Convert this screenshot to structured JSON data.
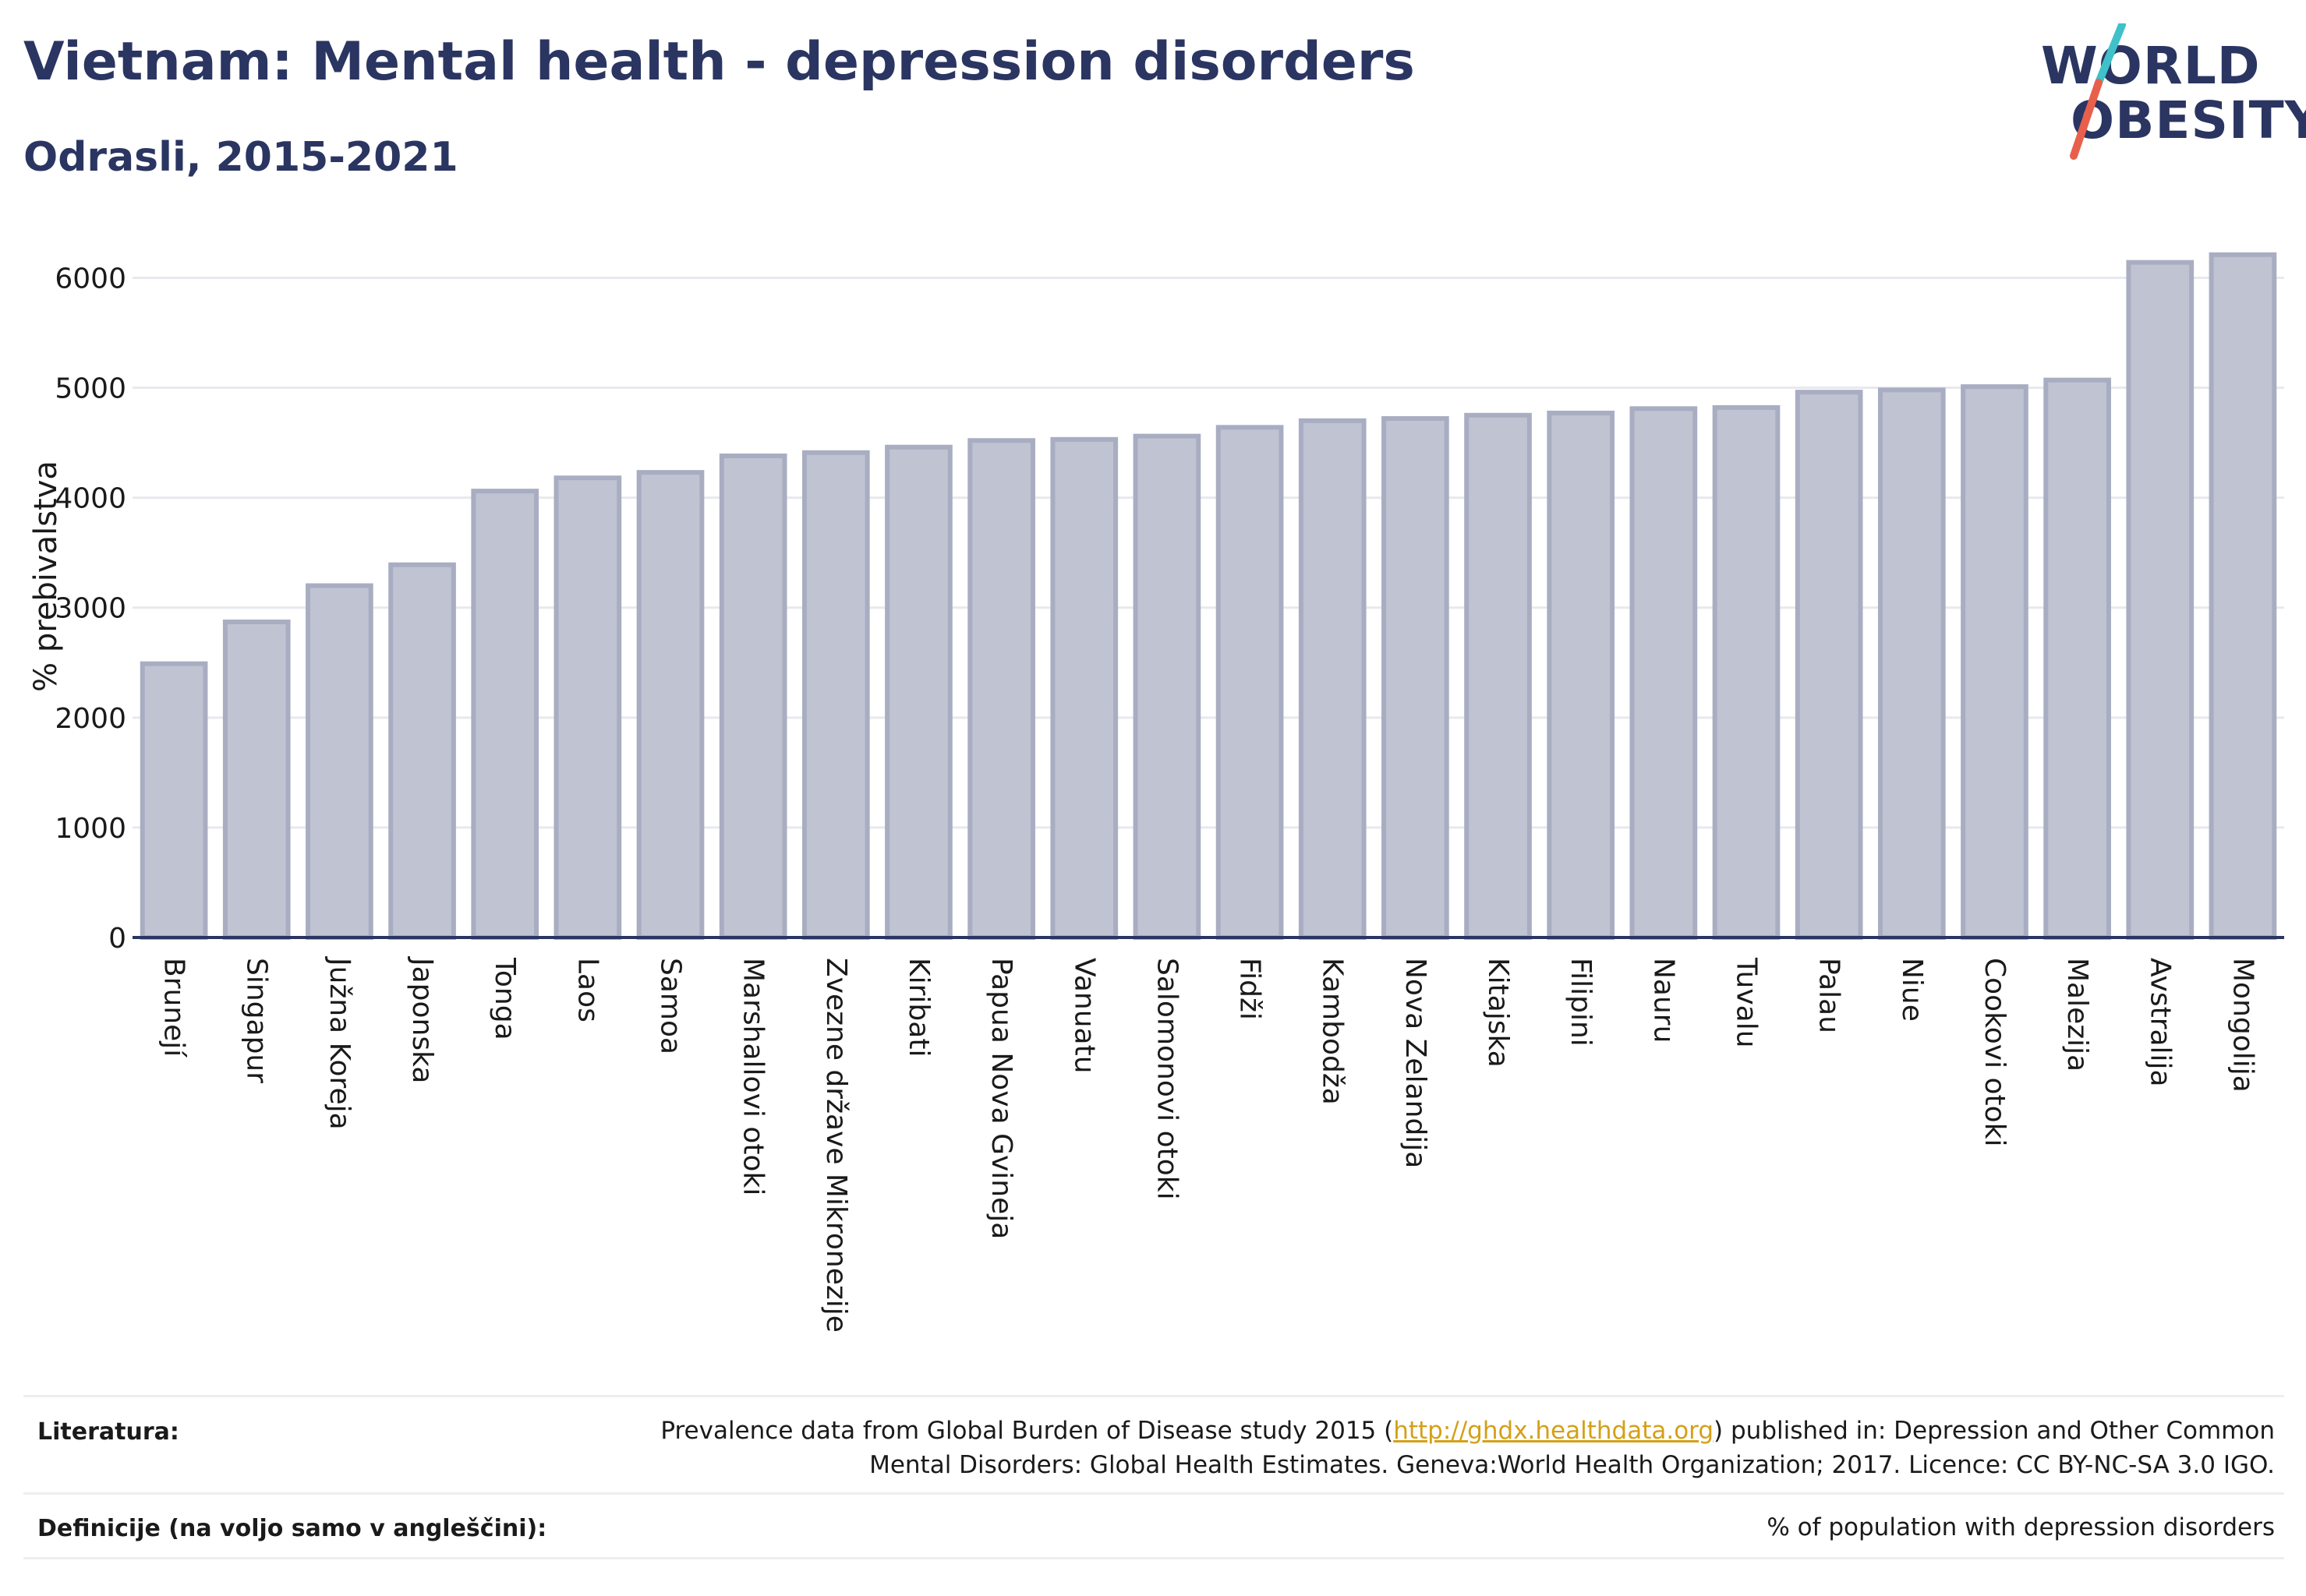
{
  "header": {
    "title": "Vietnam: Mental health - depression disorders",
    "subtitle": "Odrasli, 2015-2021"
  },
  "logo": {
    "line1": "WORLD",
    "line2": "OBESITY",
    "slash_colors": [
      "#3fc1c9",
      "#e8604c"
    ]
  },
  "colors": {
    "bar_fill": "#c0c3d2",
    "bar_stroke": "#a9adc2",
    "axis": "#2b3562",
    "grid": "#e8e9ee",
    "title": "#2b3562"
  },
  "chart_data": {
    "type": "bar",
    "ylabel": "% prebivalstva",
    "xlabel": "",
    "ylim": [
      0,
      6400
    ],
    "yticks": [
      0,
      1000,
      2000,
      3000,
      4000,
      5000,
      6000
    ],
    "grid": true,
    "categories": [
      "Brunejí",
      "Singapur",
      "Južna Koreja",
      "Japonska",
      "Tonga",
      "Laos",
      "Samoa",
      "Marshallovi otoki",
      "Zvezne države Mikronezije",
      "Kiribati",
      "Papua Nova Gvineja",
      "Vanuatu",
      "Salomonovi otoki",
      "Fidži",
      "Kambodža",
      "Nova Zelandija",
      "Kitajska",
      "Filipini",
      "Nauru",
      "Tuvalu",
      "Palau",
      "Niue",
      "Cookovi otoki",
      "Malezija",
      "Avstralija",
      "Mongolija"
    ],
    "values": [
      2490,
      2870,
      3200,
      3390,
      4060,
      4180,
      4230,
      4380,
      4410,
      4460,
      4520,
      4530,
      4560,
      4640,
      4700,
      4720,
      4750,
      4770,
      4810,
      4820,
      4960,
      4980,
      5010,
      5070,
      6140,
      6210
    ]
  },
  "footer": {
    "sources_label": "Literatura:",
    "sources_pre": "Prevalence data from Global Burden of Disease study 2015 (",
    "sources_link": "http://ghdx.healthdata.org",
    "sources_post": ") published in: Depression and Other Common",
    "sources_line2": "Mental Disorders: Global Health Estimates. Geneva:World Health Organization; 2017. Licence: CC BY-NC-SA 3.0 IGO.",
    "definitions_label": "Definicije (na voljo samo v angleščini):",
    "definitions_text": "% of population with depression disorders"
  }
}
